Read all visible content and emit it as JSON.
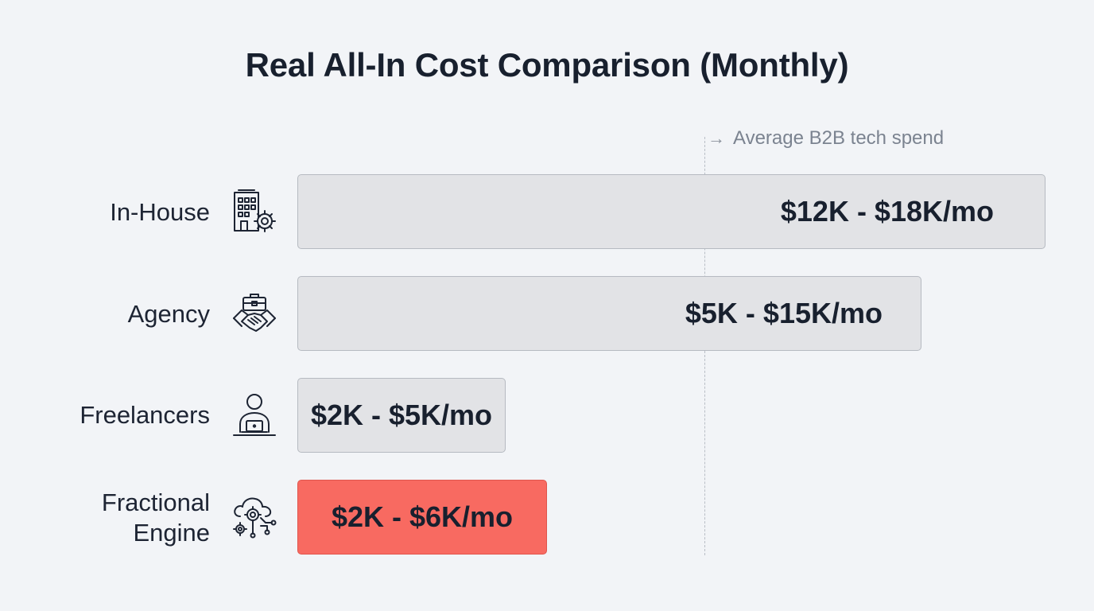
{
  "chart_data": {
    "type": "bar",
    "orientation": "horizontal",
    "title": "Real All-In Cost Comparison (Monthly)",
    "categories": [
      "In-House",
      "Agency",
      "Freelancers",
      "Fractional Engine"
    ],
    "ranges": [
      {
        "min": 12,
        "max": 18,
        "label": "$12K - $18K/mo"
      },
      {
        "min": 5,
        "max": 15,
        "label": "$5K - $15K/mo"
      },
      {
        "min": 2,
        "max": 5,
        "label": "$2K - $5K/mo"
      },
      {
        "min": 2,
        "max": 6,
        "label": "$2K - $6K/mo"
      }
    ],
    "unit": "K USD per month",
    "highlight_index": 3,
    "reference_line": {
      "label": "Average B2B tech spend"
    },
    "grid": false,
    "legend": "none"
  },
  "rows": [
    {
      "label_lines": [
        "In-House"
      ],
      "icon": "office-building-gear-icon"
    },
    {
      "label_lines": [
        "Agency"
      ],
      "icon": "briefcase-handshake-icon"
    },
    {
      "label_lines": [
        "Freelancers"
      ],
      "icon": "person-laptop-icon"
    },
    {
      "label_lines": [
        "Fractional",
        "Engine"
      ],
      "icon": "cloud-gears-network-icon"
    }
  ],
  "colors": {
    "background": "#f2f4f7",
    "bar_default": "#e2e3e6",
    "bar_highlight": "#f86a61",
    "text": "#18202e",
    "reference": "#7b8390"
  }
}
